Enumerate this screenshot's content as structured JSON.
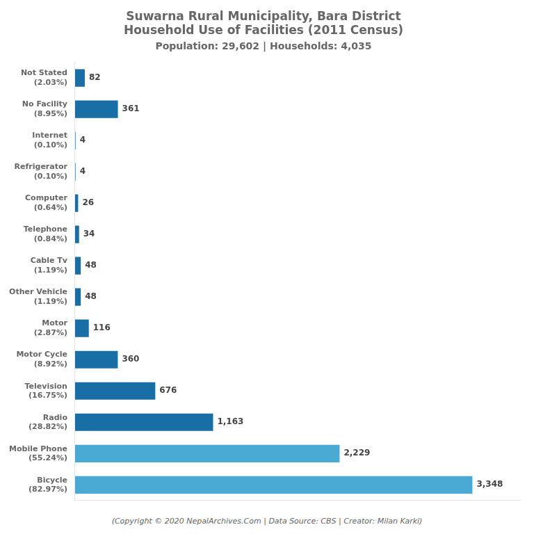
{
  "chart_data": {
    "type": "bar",
    "orientation": "horizontal",
    "title": "Suwarna Rural Municipality, Bara District\nHousehold Use of Facilities (2011 Census)",
    "subtitle": "Population: 29,602 | Households: 4,035",
    "annotations": [
      "(Copyright © 2020 NepalArchives.Com | Data Source: CBS | Creator: Milan Karki)"
    ],
    "categories": [
      "Not Stated\n(2.03%)",
      "No Facility\n(8.95%)",
      "Internet\n(0.10%)",
      "Refrigerator\n(0.10%)",
      "Computer\n(0.64%)",
      "Telephone\n(0.84%)",
      "Cable Tv\n(1.19%)",
      "Other Vehicle\n(1.19%)",
      "Motor\n(2.87%)",
      "Motor Cycle\n(8.92%)",
      "Television\n(16.75%)",
      "Radio\n(28.82%)",
      "Mobile Phone\n(55.24%)",
      "Bicycle\n(82.97%)"
    ],
    "values": [
      82,
      361,
      4,
      4,
      26,
      34,
      48,
      48,
      116,
      360,
      676,
      1163,
      2229,
      3348
    ],
    "value_labels": [
      "82",
      "361",
      "4",
      "4",
      "26",
      "34",
      "48",
      "48",
      "116",
      "360",
      "676",
      "1,163",
      "2,229",
      "3,348"
    ],
    "colors": [
      "#1a6ea6",
      "#1a6ea6",
      "#1a6ea6",
      "#1a6ea6",
      "#1a6ea6",
      "#1a6ea6",
      "#1a6ea6",
      "#1a6ea6",
      "#1a6ea6",
      "#1a6ea6",
      "#1a6ea6",
      "#1a6ea6",
      "#4aaad4",
      "#4aaad4"
    ],
    "xlim": [
      0,
      3750
    ],
    "grid": false,
    "data_labels": true,
    "tick_labels": "y"
  }
}
